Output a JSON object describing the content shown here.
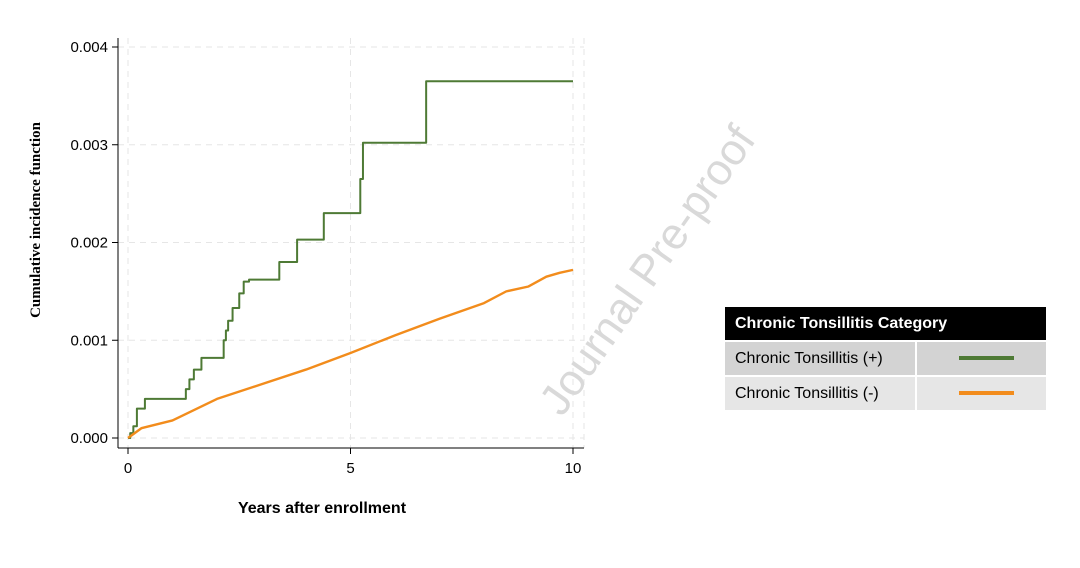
{
  "chart_data": {
    "type": "line",
    "step": true,
    "xlabel": "Years after enrollment",
    "ylabel": "Cumulative incidence function",
    "xlim": [
      0,
      10
    ],
    "ylim": [
      0,
      0.004
    ],
    "xticks": [
      "0",
      "5",
      "10"
    ],
    "yticks": [
      "0.000",
      "0.001",
      "0.002",
      "0.003",
      "0.004"
    ],
    "grid": true,
    "legend": {
      "placement": "right",
      "title": "Chronic Tonsillitis Category"
    },
    "series": [
      {
        "name": "Chronic Tonsillitis (+)",
        "color": "#4e7a35",
        "x": [
          0,
          0.05,
          0.12,
          0.2,
          0.38,
          1.3,
          1.38,
          1.48,
          1.65,
          2.15,
          2.2,
          2.25,
          2.35,
          2.5,
          2.6,
          2.72,
          3.4,
          3.8,
          4.4,
          5.22,
          5.28,
          6.7,
          10
        ],
        "values": [
          0,
          5e-05,
          0.00012,
          0.0003,
          0.0004,
          0.0005,
          0.0006,
          0.0007,
          0.00082,
          0.001,
          0.0011,
          0.0012,
          0.00133,
          0.00148,
          0.0016,
          0.00162,
          0.0018,
          0.00203,
          0.0023,
          0.00265,
          0.00302,
          0.00365,
          0.00365
        ]
      },
      {
        "name": "Chronic Tonsillitis (-)",
        "color": "#f28c1c",
        "x": [
          0,
          0.3,
          1,
          2,
          3,
          4,
          5,
          6,
          7,
          8,
          8.5,
          9,
          9.4,
          9.7,
          10
        ],
        "values": [
          0,
          0.0001,
          0.00018,
          0.0004,
          0.00055,
          0.0007,
          0.00087,
          0.00105,
          0.00122,
          0.00138,
          0.0015,
          0.00155,
          0.00165,
          0.00169,
          0.00172
        ]
      }
    ]
  },
  "watermark": "Journal Pre-proof"
}
